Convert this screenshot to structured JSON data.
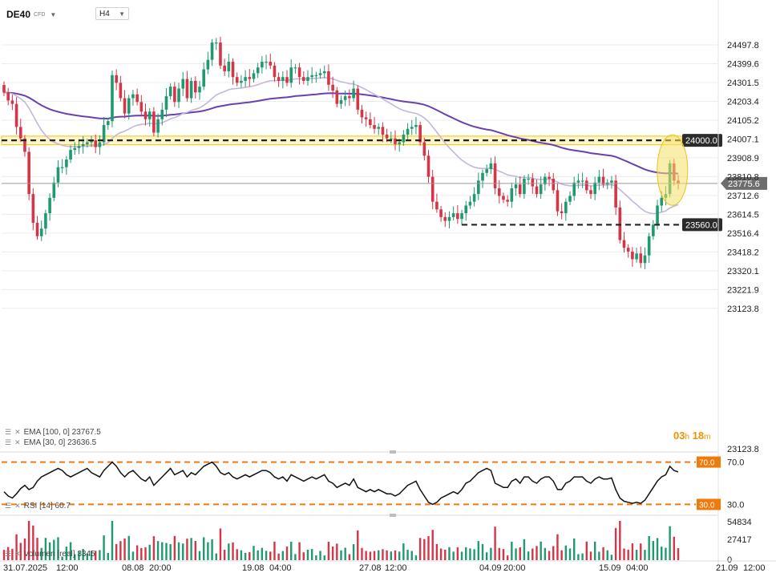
{
  "header": {
    "symbol": "DE40",
    "symbol_type": "CFD",
    "timeframe": "H4"
  },
  "indicators": {
    "ema100": "EMA  [100,  0]  23767.5",
    "ema30": "EMA  [30,  0]  23636.5",
    "rsi": "RSI  [14]  60.7",
    "volume": "Volumen  [real]  3345"
  },
  "timer": {
    "hours": "03",
    "h": "h",
    "minutes": "18",
    "m": "m"
  },
  "colors": {
    "up": "#1f9a6e",
    "down": "#d63447",
    "ema100": "#6a3fb0",
    "ema30": "#c4b7dc",
    "level": "#222222",
    "zone": "#f0c419",
    "rsi": "#111111",
    "rsi_band": "#f07a0c",
    "price_tag": "#6d6d6d",
    "highlight": "#f5e06a"
  },
  "chart_data": {
    "type": "candlestick",
    "symbol": "DE40",
    "timeframe": "H4",
    "y_axis": {
      "ticks": [
        24497.8,
        24399.6,
        24301.5,
        24203.4,
        24105.2,
        24007.1,
        23908.9,
        23810.8,
        23712.6,
        23614.5,
        23516.4,
        23418.2,
        23320.1,
        23221.9,
        23123.8
      ],
      "labels": [
        "24497.8",
        "24399.6",
        "24301.5",
        "24203.4",
        "24105.2",
        "24007.1",
        "23908.9",
        "23810.8",
        "23712.6",
        "23614.5",
        "23516.4",
        "23418.2",
        "23320.1",
        "23221.9",
        "23123.8"
      ],
      "range": [
        23123.8,
        24497.8
      ]
    },
    "x_axis": {
      "labels": [
        "31.07.2025",
        "12:00",
        "08.08",
        "20:00",
        "19.08",
        "04:00",
        "27.08",
        "12:00",
        "04.09",
        "20:00",
        "15.09",
        "04:00",
        "21.09",
        "12:00"
      ]
    },
    "current_price": 23775.6,
    "current_price_label": "23775.6",
    "levels": [
      {
        "value": 24000.0,
        "label": "24000.0",
        "style": "dashed",
        "zone": [
          23977,
          24022
        ]
      },
      {
        "value": 23560.0,
        "label": "23560.0",
        "style": "dashed"
      }
    ],
    "closes": [
      24249,
      24208,
      24190,
      24070,
      24010,
      23940,
      23720,
      23570,
      23500,
      23540,
      23620,
      23700,
      23780,
      23860,
      23860,
      23900,
      23950,
      23960,
      23970,
      23980,
      23990,
      24000,
      23965,
      23990,
      24080,
      24100,
      24340,
      24300,
      24220,
      24140,
      24220,
      24240,
      24200,
      24150,
      24110,
      24150,
      24040,
      24110,
      24160,
      24230,
      24280,
      24200,
      24270,
      24320,
      24220,
      24310,
      24250,
      24280,
      24370,
      24420,
      24510,
      24510,
      24390,
      24360,
      24410,
      24330,
      24300,
      24310,
      24330,
      24320,
      24350,
      24380,
      24410,
      24410,
      24390,
      24330,
      24310,
      24330,
      24300,
      24380,
      24380,
      24330,
      24310,
      24330,
      24340,
      24340,
      24350,
      24360,
      24290,
      24260,
      24190,
      24210,
      24230,
      24220,
      24270,
      24160,
      24120,
      24110,
      24080,
      24060,
      24070,
      24030,
      24010,
      24010,
      23980,
      23990,
      24030,
      24060,
      24070,
      24080,
      23990,
      23920,
      23810,
      23680,
      23640,
      23600,
      23580,
      23600,
      23620,
      23590,
      23620,
      23660,
      23680,
      23720,
      23790,
      23830,
      23850,
      23880,
      23750,
      23710,
      23690,
      23680,
      23750,
      23770,
      23720,
      23800,
      23800,
      23760,
      23720,
      23770,
      23810,
      23800,
      23740,
      23630,
      23620,
      23680,
      23710,
      23780,
      23790,
      23790,
      23740,
      23720,
      23780,
      23810,
      23770,
      23780,
      23790,
      23650,
      23480,
      23440,
      23420,
      23380,
      23410,
      23360,
      23400,
      23500,
      23560,
      23660,
      23700,
      23720,
      23880,
      23790,
      23775.6
    ],
    "volume": {
      "axis_labels": [
        "54834",
        "27417",
        "0"
      ],
      "last": 3345
    },
    "rsi": {
      "period": 14,
      "last": 60.7,
      "levels": [
        70.0,
        30.0
      ],
      "level_labels": [
        "70.0",
        "30.0"
      ],
      "values": [
        42,
        38,
        36,
        40,
        45,
        48,
        44,
        46,
        52,
        56,
        58,
        60,
        62,
        64,
        62,
        58,
        56,
        58,
        60,
        62,
        64,
        60,
        58,
        56,
        62,
        66,
        70,
        66,
        60,
        56,
        60,
        62,
        58,
        54,
        52,
        56,
        48,
        52,
        56,
        60,
        64,
        58,
        60,
        62,
        56,
        60,
        58,
        62,
        66,
        68,
        70,
        66,
        60,
        58,
        60,
        56,
        54,
        56,
        58,
        56,
        58,
        60,
        62,
        62,
        60,
        56,
        54,
        56,
        52,
        58,
        56,
        54,
        52,
        54,
        56,
        54,
        56,
        58,
        52,
        50,
        46,
        48,
        50,
        48,
        54,
        46,
        44,
        42,
        44,
        42,
        44,
        42,
        40,
        40,
        38,
        40,
        44,
        48,
        50,
        52,
        44,
        38,
        32,
        30,
        32,
        36,
        38,
        40,
        42,
        40,
        44,
        50,
        52,
        56,
        60,
        62,
        64,
        62,
        50,
        48,
        46,
        46,
        52,
        54,
        50,
        56,
        56,
        52,
        50,
        54,
        56,
        56,
        52,
        44,
        44,
        50,
        52,
        56,
        56,
        56,
        52,
        50,
        54,
        56,
        54,
        54,
        55,
        44,
        36,
        33,
        32,
        31,
        32,
        31,
        34,
        40,
        46,
        52,
        56,
        58,
        66,
        62,
        60.7
      ]
    }
  }
}
